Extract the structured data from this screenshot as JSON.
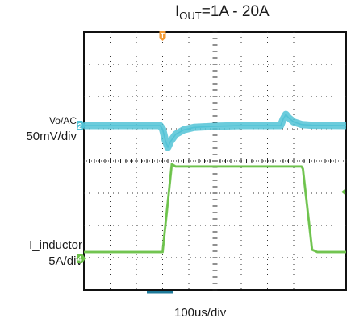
{
  "chart_data": {
    "type": "line",
    "title": {
      "main": "I",
      "sub": "OUT",
      "rest": "=1A - 20A"
    },
    "xlabel": "100us/div",
    "grid": true,
    "series": [
      {
        "name": "Vo/AC",
        "scale": "50mV/div",
        "color": "#52c3d6",
        "marker": "2",
        "x": [
          0,
          2.9,
          3.0,
          3.1,
          3.2,
          3.3,
          3.5,
          3.8,
          4.2,
          5.0,
          6.0,
          7.0,
          7.5,
          7.6,
          7.7,
          7.8,
          8.0,
          8.3,
          8.7,
          10
        ],
        "y": [
          0,
          0,
          -0.5,
          -2.0,
          -3.0,
          -2.2,
          -1.2,
          -0.6,
          -0.25,
          -0.1,
          0,
          0,
          0,
          0.9,
          1.55,
          1.1,
          0.5,
          0.15,
          0.05,
          0
        ]
      },
      {
        "name": "I_inductor",
        "scale": "5A/div",
        "color": "#6cc24a",
        "marker": "4",
        "x": [
          0,
          3.0,
          3.35,
          3.5,
          4.0,
          8.3,
          8.35,
          8.7,
          8.9,
          10
        ],
        "y": [
          1,
          1,
          20,
          19.5,
          19.5,
          19.5,
          19.0,
          1.5,
          1,
          1
        ]
      }
    ],
    "trigger_marker": "T"
  },
  "labels": {
    "vo_name": "Vo/AC",
    "vo_scale": "50mV/div",
    "il_name": "I_inductor",
    "il_scale": "5A/div"
  }
}
